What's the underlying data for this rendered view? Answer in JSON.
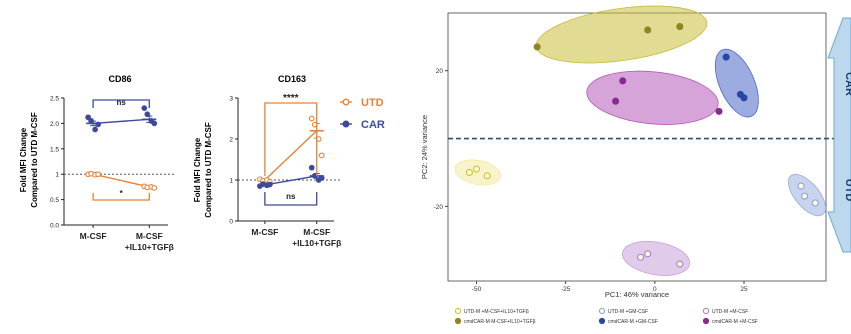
{
  "colors": {
    "utd": "#e8823a",
    "car": "#3c4a9e",
    "dashed_line": "#2b4f7a",
    "arrow_fill": "#bcd8ee",
    "arrow_stroke": "#6fa8d6",
    "ellipse_olive": "#c9bd3a",
    "ellipse_purple": "#b45ab8",
    "ellipse_blue": "#4b68c6",
    "ellipse_lavender": "#c8a0d8",
    "ellipse_lightblue": "#9aaee0",
    "ellipse_pale_yellow": "#f2eaa0"
  },
  "chart_data": [
    {
      "type": "line",
      "title": "CD86",
      "ylabel": "Fold MFI Change\nCompared to UTD M-CSF",
      "ylim": [
        0.0,
        2.5
      ],
      "yticks": [
        "0.0",
        "0.5",
        "1",
        "1.5",
        "2.0",
        "2.5"
      ],
      "categories": [
        "M-CSF",
        "M-CSF\n+IL10+TGFβ"
      ],
      "reference_line": 1.0,
      "series": [
        {
          "name": "UTD",
          "means": [
            1.0,
            0.75
          ],
          "points": [
            [
              1.0,
              1.01,
              0.99,
              1.0
            ],
            [
              0.76,
              0.74,
              0.75,
              0.73
            ]
          ]
        },
        {
          "name": "CAR",
          "means": [
            2.0,
            2.08
          ],
          "points": [
            [
              2.12,
              2.05,
              1.88,
              1.98
            ],
            [
              2.3,
              2.18,
              2.05,
              2.0
            ]
          ]
        }
      ],
      "annotations": [
        {
          "text": "ns",
          "between": "CAR",
          "bracket": "top"
        },
        {
          "text": "*",
          "between": "UTD",
          "bracket": "bottom"
        }
      ]
    },
    {
      "type": "line",
      "title": "CD163",
      "ylabel": "Fold MFI Change\nCompared to UTD M-CSF",
      "ylim": [
        0,
        3
      ],
      "yticks": [
        "0",
        "1",
        "2",
        "3"
      ],
      "categories": [
        "M-CSF",
        "M-CSF\n+IL10+TGFβ"
      ],
      "reference_line": 1.0,
      "legend": [
        "UTD",
        "CAR"
      ],
      "series": [
        {
          "name": "UTD",
          "means": [
            1.0,
            2.2
          ],
          "points": [
            [
              1.02,
              0.98,
              1.0,
              0.96
            ],
            [
              2.5,
              2.35,
              2.0,
              1.6
            ]
          ]
        },
        {
          "name": "CAR",
          "means": [
            0.88,
            1.1
          ],
          "points": [
            [
              0.85,
              0.9,
              0.87,
              0.89
            ],
            [
              1.3,
              1.1,
              1.0,
              1.05
            ]
          ]
        }
      ],
      "annotations": [
        {
          "text": "****",
          "between": "UTD",
          "bracket": "top"
        },
        {
          "text": "ns",
          "between": "CAR",
          "bracket": "bottom"
        }
      ]
    },
    {
      "type": "scatter",
      "xlabel": "PC1: 46% variance",
      "ylabel": "PC2: 24% variance",
      "xlim": [
        -58,
        48
      ],
      "ylim": [
        -42,
        37
      ],
      "xticks": [
        -50,
        -25,
        0,
        25
      ],
      "yticks": [
        20,
        -20
      ],
      "reference_line_y": 0,
      "side_labels": {
        "up": "CAR",
        "down": "UTD"
      },
      "groups": [
        {
          "label": "UTD-M +M-CSF+IL10+TGFβ",
          "style": "open",
          "color": "#d2c42a",
          "ellipse": "#f2eaa0",
          "points": [
            [
              -52,
              -10
            ],
            [
              -50,
              -9
            ],
            [
              -47,
              -11
            ]
          ]
        },
        {
          "label": "UTD-M +GM-CSF",
          "style": "open",
          "color": "#8ea2d8",
          "ellipse": "#9aaee0",
          "points": [
            [
              41,
              -14
            ],
            [
              42,
              -17
            ],
            [
              45,
              -19
            ]
          ]
        },
        {
          "label": "UTD-M +M-CSF",
          "style": "open",
          "color": "#b07cc8",
          "ellipse": "#c8a0d8",
          "points": [
            [
              -4,
              -35
            ],
            [
              -2,
              -34
            ],
            [
              7,
              -37
            ]
          ]
        },
        {
          "label": "cmdCAR-M M-CSF+IL10+TGFβ",
          "style": "filled",
          "color": "#8f8520",
          "ellipse": "#c9bd3a",
          "points": [
            [
              -33,
              27
            ],
            [
              -2,
              32
            ],
            [
              7,
              33
            ]
          ]
        },
        {
          "label": "cmdCAR-M +GM-CSF",
          "style": "filled",
          "color": "#2a44a8",
          "ellipse": "#4b68c6",
          "points": [
            [
              20,
              24
            ],
            [
              24,
              13
            ],
            [
              25,
              12
            ]
          ]
        },
        {
          "label": "cmdCAR-M +M-CSF",
          "style": "filled",
          "color": "#8a2a90",
          "ellipse": "#b45ab8",
          "points": [
            [
              -9,
              17
            ],
            [
              -11,
              11
            ],
            [
              18,
              8
            ]
          ]
        }
      ]
    }
  ]
}
